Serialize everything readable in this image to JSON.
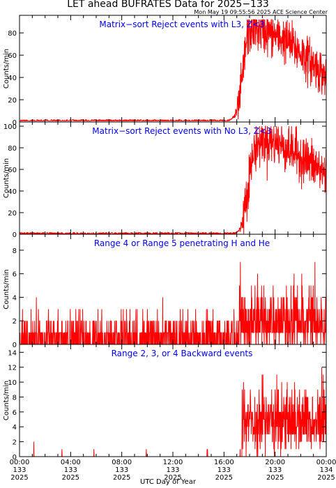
{
  "page": {
    "title": "LET ahead BUFRATES Data for 2025−133",
    "timestamp": "Mon May 19 09:55:56 2025 ACE Science Center",
    "x_axis_label": "UTC Day of Year"
  },
  "colors": {
    "series": "#ff0000",
    "panel_title": "#0000ff",
    "axis": "#000000",
    "background": "#ffffff"
  },
  "chart_data": [
    {
      "type": "line",
      "title": "Matrix−sort Reject events with L3, Z<3",
      "ylabel": "Counts/min",
      "ylim": [
        0,
        92
      ],
      "yticks": [
        0,
        20,
        40,
        60,
        80
      ],
      "xlim": [
        0,
        24
      ],
      "series": [
        {
          "color": "#ff0000",
          "profile": [
            [
              0,
              1
            ],
            [
              16.4,
              1
            ],
            [
              16.9,
              6
            ],
            [
              17.2,
              18
            ],
            [
              17.5,
              45
            ],
            [
              17.8,
              78
            ],
            [
              18.3,
              85
            ],
            [
              19.0,
              82
            ],
            [
              20.0,
              78
            ],
            [
              21.0,
              72
            ],
            [
              22.0,
              62
            ],
            [
              23.0,
              52
            ],
            [
              24.0,
              40
            ]
          ],
          "noise": 10
        }
      ]
    },
    {
      "type": "line",
      "title": "Matrix−sort Reject events with No L3, Z<3",
      "ylabel": "Counts/min",
      "ylim": [
        0,
        100
      ],
      "yticks": [
        0,
        20,
        40,
        60,
        80,
        100
      ],
      "xlim": [
        0,
        24
      ],
      "series": [
        {
          "color": "#ff0000",
          "profile": [
            [
              0,
              0.5
            ],
            [
              16.9,
              0.5
            ],
            [
              17.3,
              5
            ],
            [
              17.6,
              25
            ],
            [
              18.0,
              55
            ],
            [
              18.4,
              80
            ],
            [
              19.0,
              88
            ],
            [
              20.0,
              85
            ],
            [
              21.0,
              80
            ],
            [
              22.0,
              72
            ],
            [
              23.0,
              64
            ],
            [
              24.0,
              55
            ]
          ],
          "noise": 11
        }
      ]
    },
    {
      "type": "line",
      "title": "Range 4 or Range 5 penetrating H and He",
      "ylabel": "Counts/min",
      "ylim": [
        0,
        9
      ],
      "yticks": [
        0,
        2,
        4,
        6,
        8
      ],
      "xlim": [
        0,
        24
      ],
      "series": [
        {
          "color": "#ff0000",
          "kind": "poisson",
          "rate_before": 0.7,
          "rate_after": 2.0,
          "change_at": 17.2
        }
      ]
    },
    {
      "type": "line",
      "title": "Range 2, 3, or 4 Backward events",
      "ylabel": "Counts/min",
      "ylim": [
        0,
        14.5
      ],
      "yticks": [
        0,
        2,
        4,
        6,
        8,
        10,
        12,
        14
      ],
      "xlim": [
        0,
        24
      ],
      "series": [
        {
          "color": "#ff0000",
          "kind": "poisson",
          "rate_before": 0.015,
          "rate_after": 5.0,
          "change_at": 17.4
        }
      ]
    }
  ],
  "x_ticks": [
    {
      "time": "00:00",
      "day": "133",
      "year": "2025"
    },
    {
      "time": "04:00",
      "day": "133",
      "year": "2025"
    },
    {
      "time": "08:00",
      "day": "133",
      "year": "2025"
    },
    {
      "time": "12:00",
      "day": "133",
      "year": "2025"
    },
    {
      "time": "16:00",
      "day": "133",
      "year": "2025"
    },
    {
      "time": "20:00",
      "day": "133",
      "year": "2025"
    },
    {
      "time": "00:00",
      "day": "134",
      "year": "2025"
    }
  ]
}
